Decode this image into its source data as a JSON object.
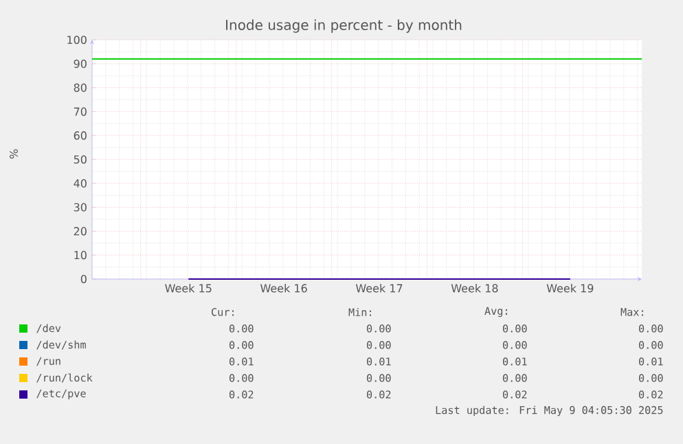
{
  "chart_data": {
    "type": "line",
    "title": "Inode usage in percent - by month",
    "ylabel": "%",
    "categories": [
      "Week 15",
      "Week 16",
      "Week 17",
      "Week 18",
      "Week 19"
    ],
    "ylim": [
      0,
      100
    ],
    "yticks": [
      0,
      10,
      20,
      30,
      40,
      50,
      60,
      70,
      80,
      90,
      100
    ],
    "grid": true,
    "legend": "bottom",
    "marker": "none",
    "line_style": "solid",
    "series": [
      {
        "name": "/dev",
        "color": "#00cc00",
        "values": [
          null,
          null,
          null,
          null,
          null
        ]
      },
      {
        "name": "/dev/shm",
        "color": "#0066b3",
        "values": [
          null,
          null,
          null,
          null,
          null
        ]
      },
      {
        "name": "/run",
        "color": "#ff8000",
        "values": [
          null,
          null,
          null,
          null,
          null
        ]
      },
      {
        "name": "/run/lock",
        "color": "#ffcc00",
        "values": [
          null,
          null,
          null,
          null,
          null
        ]
      },
      {
        "name": "/etc/pve",
        "color": "#330099",
        "values": [
          0,
          0,
          0,
          0,
          0
        ]
      }
    ],
    "ref_lines": [
      {
        "axis": "y",
        "value": 92,
        "color": "#00cc00"
      }
    ],
    "annotations": [
      "Cur:",
      "Min:",
      "Avg:",
      "Max:",
      "0.00",
      "0.00",
      "0.00",
      "0.00",
      "0.00",
      "0.00",
      "0.00",
      "0.00",
      "0.01",
      "0.01",
      "0.01",
      "0.01",
      "0.00",
      "0.00",
      "0.00",
      "0.00",
      "0.02",
      "0.02",
      "0.02",
      "0.02",
      "Last update: Fri May  9 04:05:30 2025"
    ]
  }
}
